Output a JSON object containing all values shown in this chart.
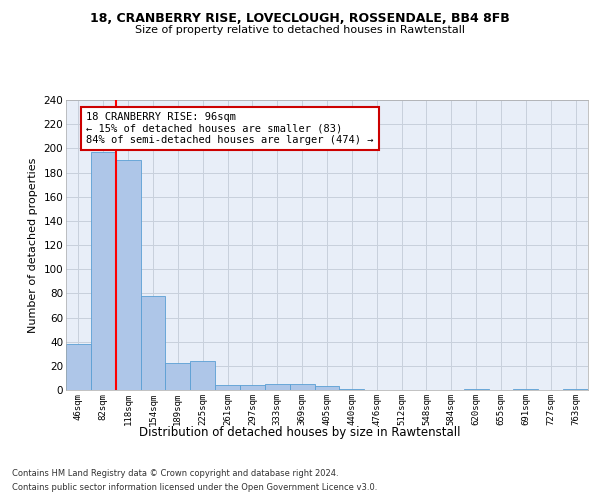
{
  "title1": "18, CRANBERRY RISE, LOVECLOUGH, ROSSENDALE, BB4 8FB",
  "title2": "Size of property relative to detached houses in Rawtenstall",
  "xlabel": "Distribution of detached houses by size in Rawtenstall",
  "ylabel": "Number of detached properties",
  "categories": [
    "46sqm",
    "82sqm",
    "118sqm",
    "154sqm",
    "189sqm",
    "225sqm",
    "261sqm",
    "297sqm",
    "333sqm",
    "369sqm",
    "405sqm",
    "440sqm",
    "476sqm",
    "512sqm",
    "548sqm",
    "584sqm",
    "620sqm",
    "655sqm",
    "691sqm",
    "727sqm",
    "763sqm"
  ],
  "values": [
    38,
    197,
    190,
    78,
    22,
    24,
    4,
    4,
    5,
    5,
    3,
    1,
    0,
    0,
    0,
    0,
    1,
    0,
    1,
    0,
    1
  ],
  "bar_color": "#aec6e8",
  "bar_edge_color": "#5a9fd4",
  "red_line_x": 1.5,
  "annotation_text": "18 CRANBERRY RISE: 96sqm\n← 15% of detached houses are smaller (83)\n84% of semi-detached houses are larger (474) →",
  "annotation_box_color": "#ffffff",
  "annotation_box_edge": "#cc0000",
  "ylim": [
    0,
    240
  ],
  "yticks": [
    0,
    20,
    40,
    60,
    80,
    100,
    120,
    140,
    160,
    180,
    200,
    220,
    240
  ],
  "grid_color": "#c8d0dc",
  "background_color": "#e8eef8",
  "footnote1": "Contains HM Land Registry data © Crown copyright and database right 2024.",
  "footnote2": "Contains public sector information licensed under the Open Government Licence v3.0."
}
